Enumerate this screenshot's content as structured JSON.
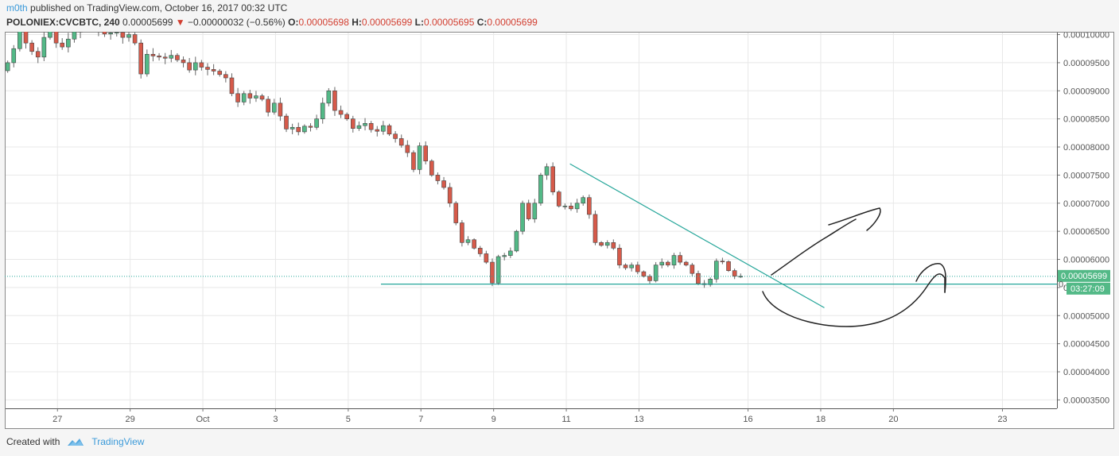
{
  "header": {
    "author": "m0th",
    "published_text": " published on TradingView.com, October 16, 2017 00:32 UTC",
    "symbol": "POLONIEX:CVCBTC, 240",
    "last": "0.00005699",
    "arrow": "▼",
    "change": "−0.00000032 (−0.56%)",
    "o_label": "O:",
    "o": "0.00005698",
    "h_label": "H:",
    "h": "0.00005699",
    "l_label": "L:",
    "l": "0.00005695",
    "c_label": "C:",
    "c": "0.00005699"
  },
  "footer": {
    "created_with": "Created with",
    "brand": "TradingView",
    "logo_icon": "tradingview-cloud-icon"
  },
  "colors": {
    "up": "#53b987",
    "down": "#d65a4a",
    "trendline": "#26a69a",
    "drawing": "#222222",
    "price_tag": "#53b987",
    "grid": "#e8e8e8"
  },
  "chart_data": {
    "type": "candlestick",
    "interval": "240",
    "y_range": [
      3.35e-05,
      0.0001005
    ],
    "y_ticks": [
      "0.00010000",
      "0.00009500",
      "0.00009000",
      "0.00008500",
      "0.00008000",
      "0.00007500",
      "0.00007000",
      "0.00006500",
      "0.00006000",
      "0.00005500",
      "0.00005000",
      "0.00004500",
      "0.00004000",
      "0.00003500"
    ],
    "x_ticks": [
      {
        "label": "27",
        "day": -4
      },
      {
        "label": "29",
        "day": -2
      },
      {
        "label": "Oct",
        "day": 0
      },
      {
        "label": "3",
        "day": 2
      },
      {
        "label": "5",
        "day": 4
      },
      {
        "label": "7",
        "day": 6
      },
      {
        "label": "9",
        "day": 8
      },
      {
        "label": "11",
        "day": 10
      },
      {
        "label": "13",
        "day": 12
      },
      {
        "label": "16",
        "day": 15
      },
      {
        "label": "18",
        "day": 17
      },
      {
        "label": "20",
        "day": 19
      },
      {
        "label": "23",
        "day": 22
      }
    ],
    "x_range_days": [
      -5.45,
      23.5
    ],
    "last_price_label": "0.00005699",
    "last_price_value": 5.699e-05,
    "countdown_label": "03:27:09",
    "support_level": 5.56e-05,
    "trendline": {
      "from": [
        10.1,
        7.7e-05
      ],
      "to": [
        17.1,
        5.14e-05
      ]
    },
    "support_line": {
      "from": [
        4.9,
        5.56e-05
      ],
      "to": [
        23.5,
        5.56e-05
      ]
    },
    "closes": [
      9.5e-05,
      9.75e-05,
      0.000101,
      9.85e-05,
      9.7e-05,
      9.6e-05,
      9.95e-05,
      0.000101,
      9.85e-05,
      9.78e-05,
      9.92e-05,
      0.0001005,
      0.000103,
      0.000102,
      0.0001012,
      0.0001006,
      0.0001001,
      0.0001003,
      0.0001004,
      9.95e-05,
      0.0001,
      9.85e-05,
      9.3e-05,
      9.65e-05,
      9.62e-05,
      9.6e-05,
      9.58e-05,
      9.63e-05,
      9.55e-05,
      9.5e-05,
      9.37e-05,
      9.5e-05,
      9.42e-05,
      9.38e-05,
      9.35e-05,
      9.29e-05,
      9.23e-05,
      8.95e-05,
      8.8e-05,
      8.95e-05,
      8.87e-05,
      8.91e-05,
      8.85e-05,
      8.62e-05,
      8.78e-05,
      8.55e-05,
      8.32e-05,
      8.35e-05,
      8.27e-05,
      8.37e-05,
      8.35e-05,
      8.5e-05,
      8.78e-05,
      9e-05,
      8.65e-05,
      8.58e-05,
      8.5e-05,
      8.33e-05,
      8.38e-05,
      8.42e-05,
      8.31e-05,
      8.28e-05,
      8.38e-05,
      8.23e-05,
      8.15e-05,
      8.03e-05,
      7.9e-05,
      7.6e-05,
      8.02e-05,
      7.75e-05,
      7.5e-05,
      7.4e-05,
      7.28e-05,
      7e-05,
      6.65e-05,
      6.3e-05,
      6.35e-05,
      6.2e-05,
      6.1e-05,
      5.95e-05,
      5.58e-05,
      6.05e-05,
      6.07e-05,
      6.15e-05,
      6.5e-05,
      7e-05,
      6.72e-05,
      7e-05,
      7.5e-05,
      7.65e-05,
      7.2e-05,
      6.95e-05,
      6.95e-05,
      6.9e-05,
      7e-05,
      7.1e-05,
      6.8e-05,
      6.3e-05,
      6.25e-05,
      6.3e-05,
      6.2e-05,
      5.9e-05,
      5.85e-05,
      5.9e-05,
      5.78e-05,
      5.7e-05,
      5.62e-05,
      5.9e-05,
      5.95e-05,
      5.9e-05,
      6.07e-05,
      5.95e-05,
      5.9e-05,
      5.75e-05,
      5.57e-05,
      5.55e-05,
      5.65e-05,
      5.97e-05,
      5.96e-05,
      5.8e-05,
      5.7e-05,
      5.7e-05
    ]
  }
}
